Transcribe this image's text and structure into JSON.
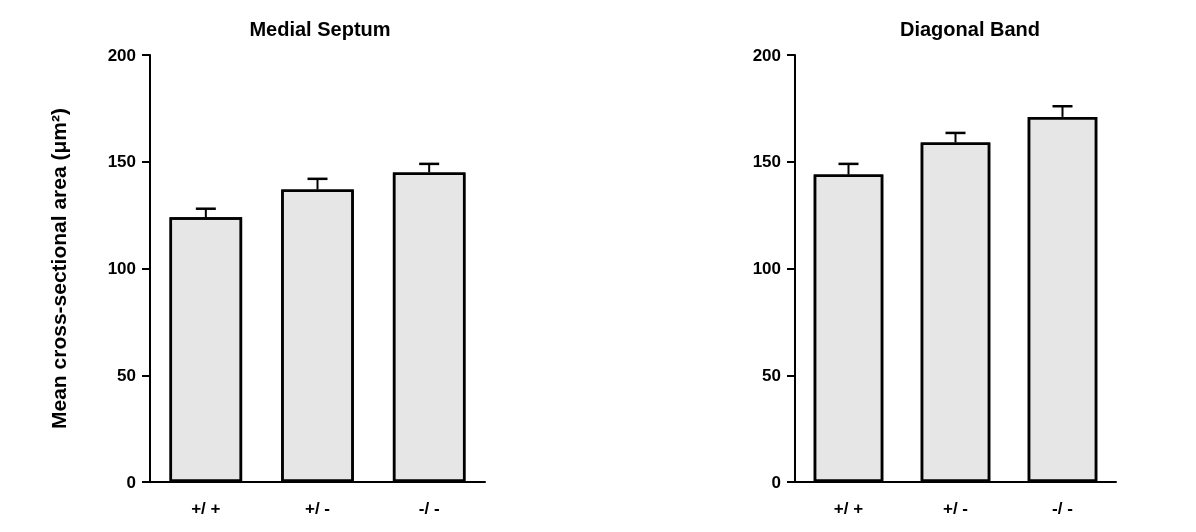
{
  "chart_data": [
    {
      "type": "bar",
      "title": "Medial Septum",
      "ylabel": "Mean cross-sectional area (μm²)",
      "categories": [
        "+/ +",
        "+/ -",
        "-/ -"
      ],
      "series": [
        {
          "color": "#e6e6e6",
          "values": [
            124,
            137,
            145
          ],
          "errors": [
            [
              124,
              128
            ],
            [
              137,
              142
            ],
            [
              145,
              149
            ]
          ]
        }
      ],
      "ylim": [
        0,
        200
      ],
      "yticks": [
        0,
        50,
        100,
        150,
        200
      ],
      "grid": false
    },
    {
      "type": "bar",
      "title": "Diagonal Band",
      "categories": [
        "+/ +",
        "+/ -",
        "-/ -"
      ],
      "series": [
        {
          "color": "#e6e6e6",
          "values": [
            144,
            159,
            171
          ],
          "errors": [
            [
              144,
              149
            ],
            [
              159,
              163.5
            ],
            [
              171,
              176
            ]
          ]
        }
      ],
      "ylim": [
        0,
        200
      ],
      "yticks": [
        0,
        50,
        100,
        150,
        200
      ],
      "grid": false
    }
  ]
}
